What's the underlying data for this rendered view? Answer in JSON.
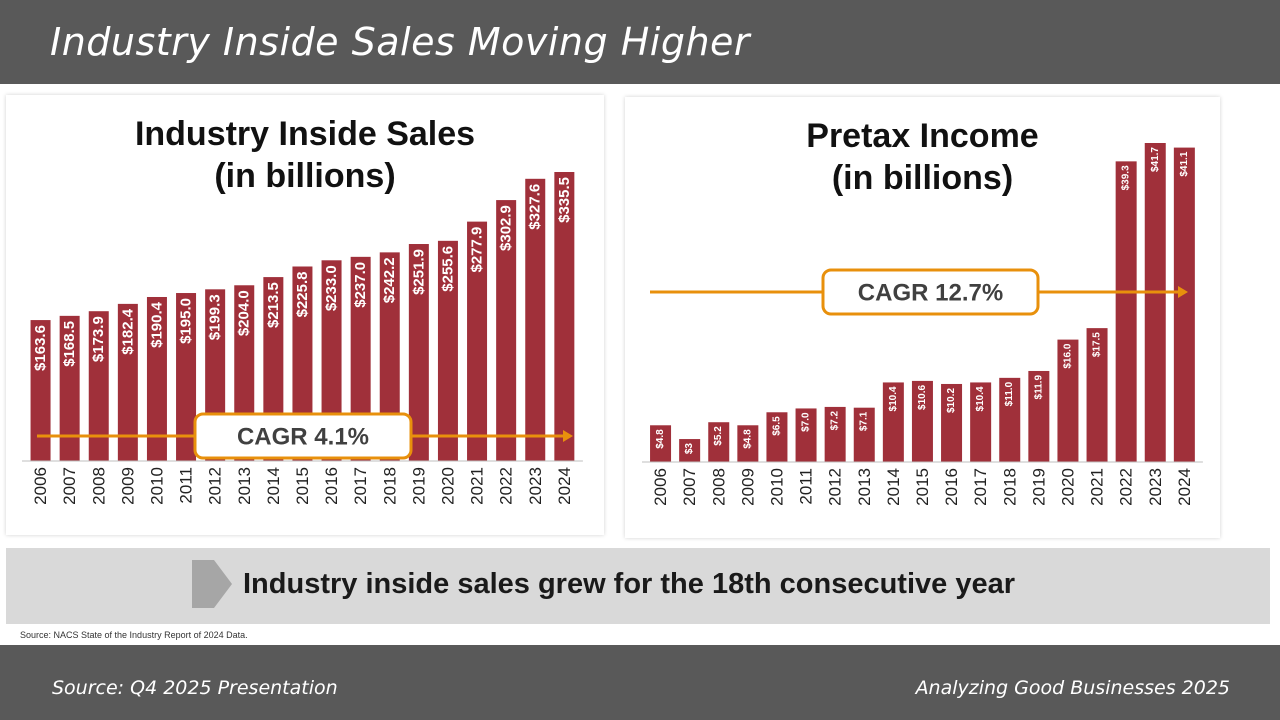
{
  "slide": {
    "title": "Industry Inside Sales Moving Higher",
    "callout": "Industry inside sales grew for the 18th consecutive year",
    "source_note": "Source: NACS State of the Industry Report of 2024 Data.",
    "footer_left": "Source: Q4 2025 Presentation",
    "footer_right": "Analyzing Good Businesses 2025"
  },
  "colors": {
    "bar": "#a0303a",
    "arrow": "#e8900c",
    "header_bg": "#595959",
    "band_bg": "#d9d9d9"
  },
  "chart_data": [
    {
      "type": "bar",
      "title_lines": [
        "Industry Inside Sales",
        "(in billions)"
      ],
      "categories": [
        "2006",
        "2007",
        "2008",
        "2009",
        "2010",
        "2011",
        "2012",
        "2013",
        "2014",
        "2015",
        "2016",
        "2017",
        "2018",
        "2019",
        "2020",
        "2021",
        "2022",
        "2023",
        "2024"
      ],
      "values": [
        163.6,
        168.5,
        173.9,
        182.4,
        190.4,
        195.0,
        199.3,
        204.0,
        213.5,
        225.8,
        233.0,
        237.0,
        242.2,
        251.9,
        255.6,
        277.9,
        302.9,
        327.6,
        335.5
      ],
      "labels": [
        "$163.6",
        "$168.5",
        "$173.9",
        "$182.4",
        "$190.4",
        "$195.0",
        "$199.3",
        "$204.0",
        "$213.5",
        "$225.8",
        "$233.0",
        "$237.0",
        "$242.2",
        "$251.9",
        "$255.6",
        "$277.9",
        "$302.9",
        "$327.6",
        "$335.5"
      ],
      "ylim": [
        0,
        335.5
      ],
      "cagr_label": "CAGR 4.1%"
    },
    {
      "type": "bar",
      "title_lines": [
        "Pretax Income",
        "(in billions)"
      ],
      "categories": [
        "2006",
        "2007",
        "2008",
        "2009",
        "2010",
        "2011",
        "2012",
        "2013",
        "2014",
        "2015",
        "2016",
        "2017",
        "2018",
        "2019",
        "2020",
        "2021",
        "2022",
        "2023",
        "2024"
      ],
      "values": [
        4.8,
        3.0,
        5.2,
        4.8,
        6.5,
        7.0,
        7.2,
        7.1,
        10.4,
        10.6,
        10.2,
        10.4,
        11.0,
        11.9,
        16.0,
        17.5,
        39.3,
        41.7,
        41.1
      ],
      "labels": [
        "$4.8",
        "$3",
        "$5.2",
        "$4.8",
        "$6.5",
        "$7.0",
        "$7.2",
        "$7.1",
        "$10.4",
        "$10.6",
        "$10.2",
        "$10.4",
        "$11.0",
        "$11.9",
        "$16.0",
        "$17.5",
        "$39.3",
        "$41.7",
        "$41.1"
      ],
      "ylim": [
        0,
        41.7
      ],
      "cagr_label": "CAGR 12.7%"
    }
  ]
}
